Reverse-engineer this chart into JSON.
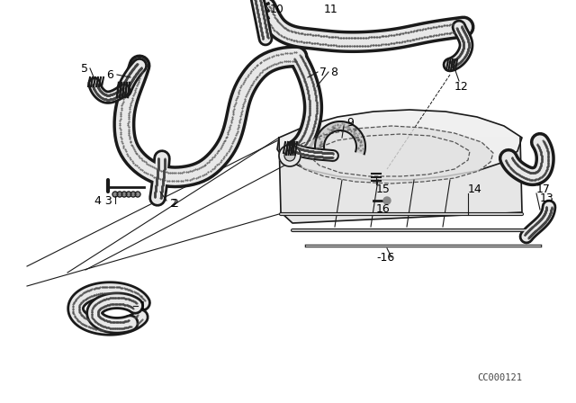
{
  "bg_color": "#ffffff",
  "line_color": "#1a1a1a",
  "watermark": "CC000121",
  "figsize": [
    6.4,
    4.48
  ],
  "dpi": 100
}
